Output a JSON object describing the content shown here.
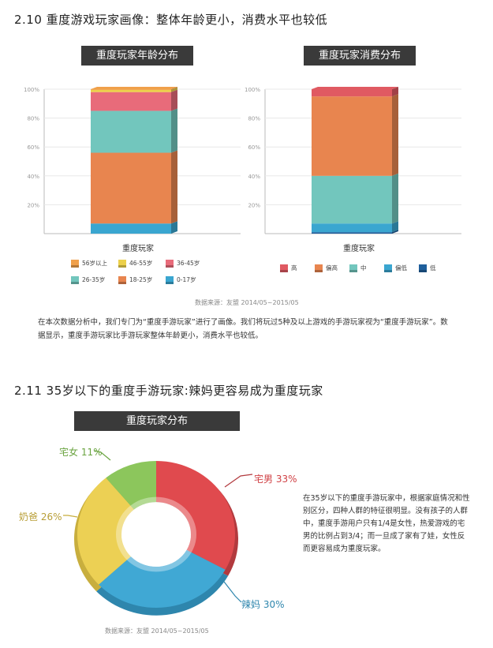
{
  "section1": {
    "title": "2.10 重度游戏玩家画像：整体年龄更小，消费水平也较低",
    "source": "数据来源：友盟 2014/05~2015/05",
    "paragraph": "在本次数据分析中，我们专门为“重度手游玩家”进行了画像。我们将玩过5种及以上游戏的手游玩家视为“重度手游玩家”。数据显示，重度手游玩家比手游玩家整体年龄更小，消费水平也较低。"
  },
  "section2": {
    "title": "2.11 35岁以下的重度手游玩家:辣妈更容易成为重度玩家",
    "source": "数据来源：友盟 2014/05~2015/05",
    "paragraph": "在35岁以下的重度手游玩家中，根据家庭情况和性别区分，四种人群的特征很明显。没有孩子的人群中，重度手游用户只有1/4是女性，热爱游戏的宅男的比例占到3/4；而一旦成了家有了娃，女性反而更容易成为重度玩家。"
  },
  "chart_data": [
    {
      "type": "bar",
      "stacked": true,
      "title": "重度玩家年龄分布",
      "categories": [
        "重度玩家"
      ],
      "y_ticks": [
        "20%",
        "40%",
        "60%",
        "80%",
        "100%"
      ],
      "ylim": [
        0,
        100
      ],
      "grid": true,
      "legend_position": "bottom",
      "series": [
        {
          "name": "0-17岁",
          "value": 7,
          "color": "#3aa6d0"
        },
        {
          "name": "18-25岁",
          "value": 49,
          "color": "#e8854f"
        },
        {
          "name": "26-35岁",
          "value": 29,
          "color": "#72c6bd"
        },
        {
          "name": "36-45岁",
          "value": 13,
          "color": "#e86b7a"
        },
        {
          "name": "46-55岁",
          "value": 1.5,
          "color": "#ecd04a"
        },
        {
          "name": "56岁以上",
          "value": 0.5,
          "color": "#f0a04a"
        }
      ],
      "legend_order": [
        "56岁以上",
        "46-55岁",
        "36-45岁",
        "26-35岁",
        "18-25岁",
        "0-17岁"
      ]
    },
    {
      "type": "bar",
      "stacked": true,
      "title": "重度玩家消费分布",
      "categories": [
        "重度玩家"
      ],
      "y_ticks": [
        "20%",
        "40%",
        "60%",
        "80%",
        "100%"
      ],
      "ylim": [
        0,
        100
      ],
      "grid": true,
      "legend_position": "bottom",
      "series": [
        {
          "name": "低",
          "value": 1,
          "color": "#1f5f9c"
        },
        {
          "name": "偏低",
          "value": 6,
          "color": "#3aa6d0"
        },
        {
          "name": "中",
          "value": 33,
          "color": "#72c6bd"
        },
        {
          "name": "偏高",
          "value": 55,
          "color": "#e8854f"
        },
        {
          "name": "高",
          "value": 5,
          "color": "#e05a62"
        }
      ],
      "legend_order": [
        "高",
        "偏高",
        "中",
        "偏低",
        "低"
      ]
    },
    {
      "type": "pie",
      "donut": true,
      "title": "重度玩家分布",
      "slices": [
        {
          "label": "宅男",
          "value": 33,
          "display": "宅男 33%",
          "color": "#e04a4e",
          "side": "#b23a3e"
        },
        {
          "label": "辣妈",
          "value": 30,
          "display": "辣妈 30%",
          "color": "#40a8d4",
          "side": "#2e86ad"
        },
        {
          "label": "奶爸",
          "value": 26,
          "display": "奶爸 26%",
          "color": "#ecd054",
          "side": "#c8ae3e"
        },
        {
          "label": "宅女",
          "value": 11,
          "display": "宅女 11%",
          "color": "#8cc65c",
          "side": "#6aa340"
        }
      ]
    }
  ]
}
